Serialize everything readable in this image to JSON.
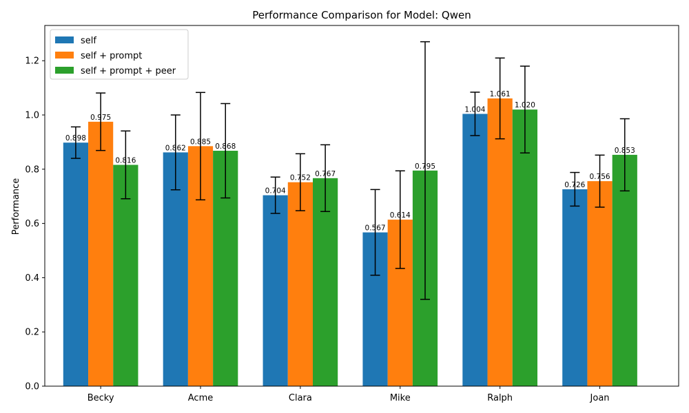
{
  "chart_data": {
    "type": "bar",
    "title": "Performance Comparison for Model: Qwen",
    "xlabel": "",
    "ylabel": "Performance",
    "ylim": [
      0,
      1.33
    ],
    "yticks": [
      0.0,
      0.2,
      0.4,
      0.6,
      0.8,
      1.0,
      1.2
    ],
    "ytick_labels": [
      "0.0",
      "0.2",
      "0.4",
      "0.6",
      "0.8",
      "1.0",
      "1.2"
    ],
    "categories": [
      "Becky",
      "Acme",
      "Clara",
      "Mike",
      "Ralph",
      "Joan"
    ],
    "legend_position": "top-left",
    "grid": false,
    "series": [
      {
        "name": "self",
        "color": "#1f77b4",
        "values": [
          0.898,
          0.862,
          0.704,
          0.567,
          1.004,
          0.726
        ],
        "labels": [
          "0.898",
          "0.862",
          "0.704",
          "0.567",
          "1.004",
          "0.726"
        ],
        "error": [
          0.058,
          0.138,
          0.067,
          0.158,
          0.08,
          0.062
        ]
      },
      {
        "name": "self + prompt",
        "color": "#ff7f0e",
        "values": [
          0.975,
          0.885,
          0.752,
          0.614,
          1.061,
          0.756
        ],
        "labels": [
          "0.975",
          "0.885",
          "0.752",
          "0.614",
          "1.061",
          "0.756"
        ],
        "error": [
          0.106,
          0.198,
          0.105,
          0.18,
          0.149,
          0.096
        ]
      },
      {
        "name": "self + prompt + peer",
        "color": "#2ca02c",
        "values": [
          0.816,
          0.868,
          0.767,
          0.795,
          1.02,
          0.853
        ],
        "labels": [
          "0.816",
          "0.868",
          "0.767",
          "0.795",
          "1.020",
          "0.853"
        ],
        "error": [
          0.125,
          0.174,
          0.123,
          0.475,
          0.16,
          0.133
        ]
      }
    ]
  }
}
